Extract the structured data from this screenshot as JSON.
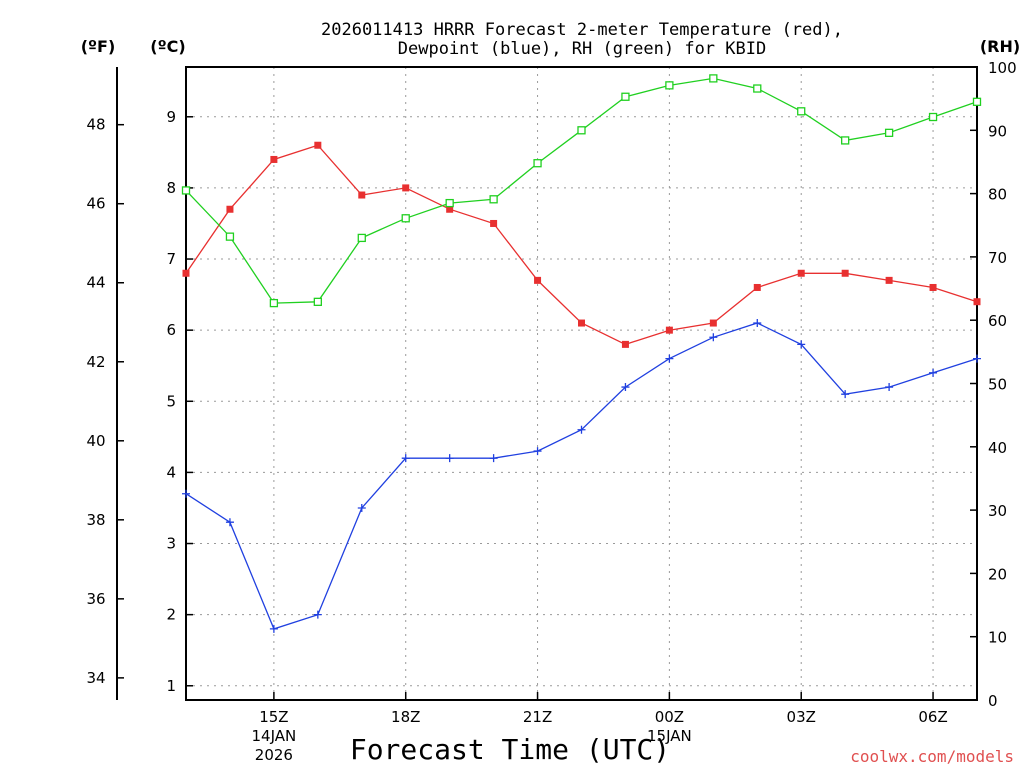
{
  "chart_data": {
    "type": "line",
    "title_line1": "2026011413 HRRR Forecast 2-meter Temperature (red),",
    "title_line2": "Dewpoint (blue), RH (green) for KBID",
    "xlabel": "Forecast Time (UTC)",
    "credit": "coolwx.com/models",
    "unit_labels": {
      "fahrenheit": "(ºF)",
      "celsius": "(ºC)",
      "rh": "(RH)"
    },
    "x": [
      13,
      14,
      15,
      16,
      17,
      18,
      19,
      20,
      21,
      22,
      23,
      24,
      25,
      26,
      27,
      28,
      29,
      30,
      31
    ],
    "xlim": [
      13,
      31
    ],
    "x_ticks": [
      {
        "x": 15,
        "label": "15Z",
        "sub1": "14JAN",
        "sub2": "2026"
      },
      {
        "x": 18,
        "label": "18Z",
        "sub1": "",
        "sub2": ""
      },
      {
        "x": 21,
        "label": "21Z",
        "sub1": "",
        "sub2": ""
      },
      {
        "x": 24,
        "label": "00Z",
        "sub1": "15JAN",
        "sub2": ""
      },
      {
        "x": 27,
        "label": "03Z",
        "sub1": "",
        "sub2": ""
      },
      {
        "x": 30,
        "label": "06Z",
        "sub1": "",
        "sub2": ""
      }
    ],
    "ylim_celsius": [
      0.8,
      9.7
    ],
    "yticks_celsius": [
      1,
      2,
      3,
      4,
      5,
      6,
      7,
      8,
      9
    ],
    "yticks_fahrenheit": [
      34,
      36,
      38,
      40,
      42,
      44,
      46,
      48
    ],
    "ylim_rh": [
      0,
      100
    ],
    "yticks_rh": [
      0,
      10,
      20,
      30,
      40,
      50,
      60,
      70,
      80,
      90,
      100
    ],
    "series": [
      {
        "name": "Temperature",
        "axis": "celsius",
        "color": "#e83030",
        "marker": "filled-square",
        "values": [
          6.8,
          7.7,
          8.4,
          8.6,
          7.9,
          8.0,
          7.7,
          7.5,
          6.7,
          6.1,
          5.8,
          6.0,
          6.1,
          6.6,
          6.8,
          6.8,
          6.7,
          6.6,
          6.4
        ]
      },
      {
        "name": "Dewpoint",
        "axis": "celsius",
        "color": "#2040e0",
        "marker": "plus",
        "values": [
          3.7,
          3.3,
          1.8,
          2.0,
          3.5,
          4.2,
          4.2,
          4.2,
          4.3,
          4.6,
          5.2,
          5.6,
          5.9,
          6.1,
          5.8,
          5.1,
          5.2,
          5.4,
          5.6
        ]
      },
      {
        "name": "RH",
        "axis": "rh",
        "color": "#20d020",
        "marker": "open-square",
        "values": [
          80.5,
          73.2,
          62.7,
          62.9,
          73.0,
          76.1,
          78.5,
          79.1,
          84.8,
          90.0,
          95.3,
          97.1,
          98.2,
          96.6,
          93.0,
          88.4,
          89.6,
          92.1,
          94.5
        ]
      }
    ],
    "grid": true
  }
}
